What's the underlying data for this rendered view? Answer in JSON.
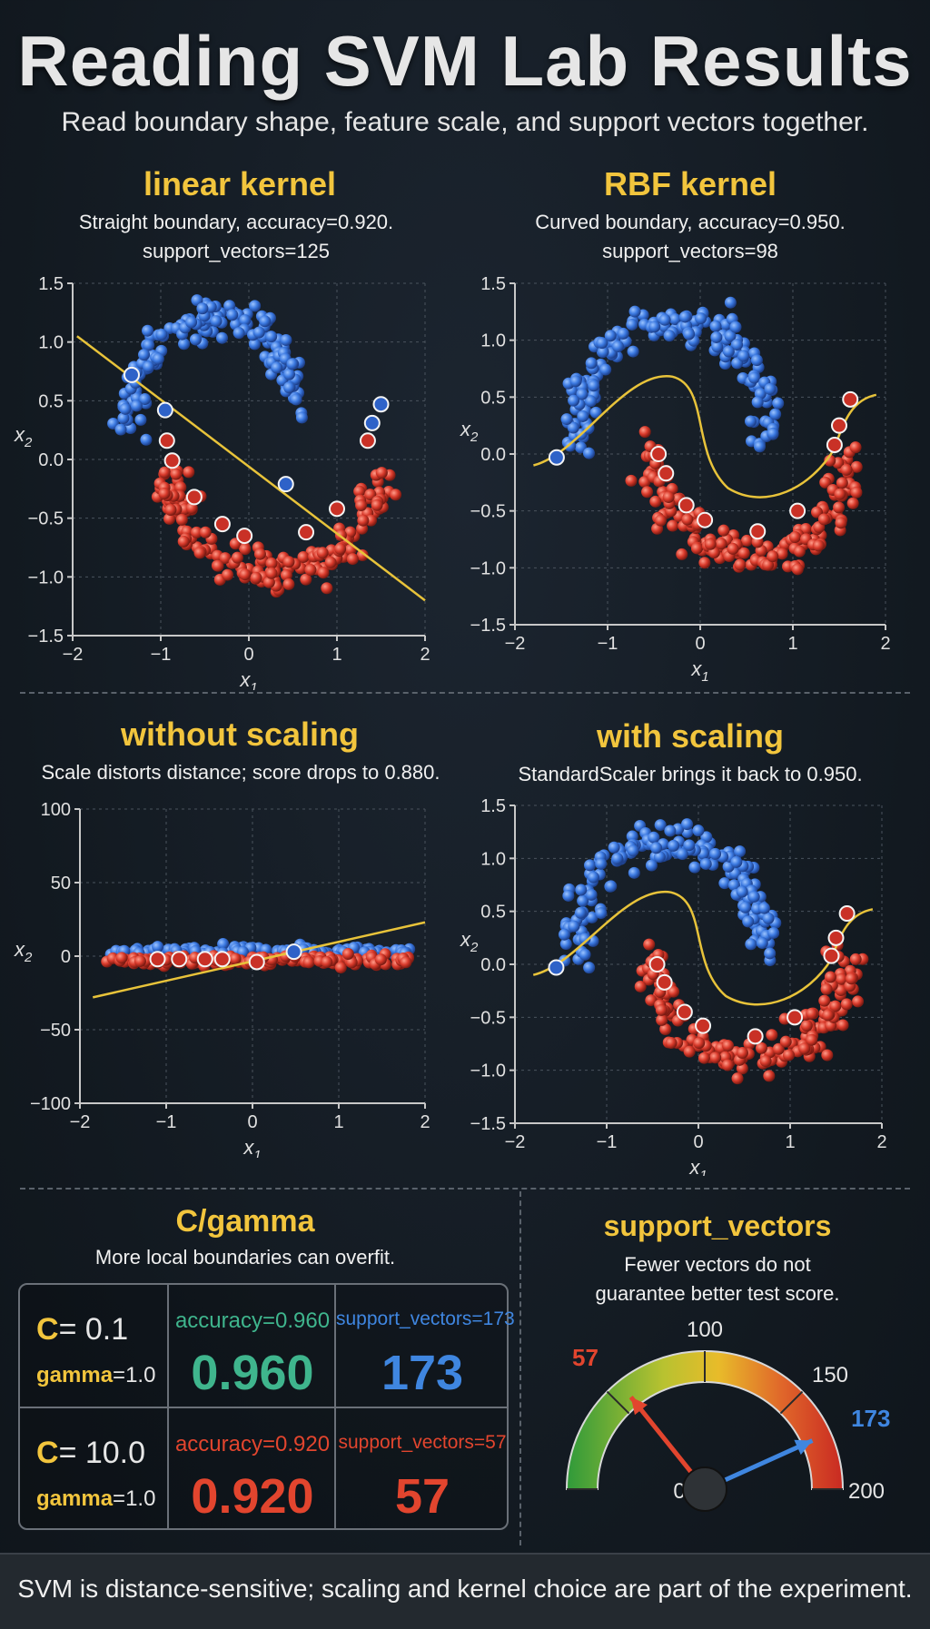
{
  "header": {
    "title": "Reading SVM Lab Results",
    "subtitle": "Read boundary shape, feature scale, and support vectors together."
  },
  "panels": {
    "linear": {
      "title": "linear kernel",
      "caption1": "Straight boundary, accuracy=0.920.",
      "caption2": "support_vectors=125"
    },
    "rbf": {
      "title": "RBF kernel",
      "caption1": "Curved boundary, accuracy=0.950.",
      "caption2": "support_vectors=98"
    },
    "noscale": {
      "title": "without scaling",
      "caption1": "Scale distorts distance; score drops to 0.880."
    },
    "scaled": {
      "title": "with scaling",
      "caption1": "StandardScaler brings it back to 0.950."
    }
  },
  "cgamma": {
    "title": "C/gamma",
    "caption": "More local boundaries can overfit.",
    "rows": [
      {
        "c_label": "C",
        "c_value": "= 0.1",
        "gamma_label": "gamma",
        "gamma_value": "=1.0",
        "acc_label": "accuracy=0.960",
        "acc_big": "0.960",
        "sv_label": "support_vectors=173",
        "sv_big": "173",
        "acc_color": "#3fb58d",
        "sv_color": "#3f86e0"
      },
      {
        "c_label": "C",
        "c_value": "= 10.0",
        "gamma_label": "gamma",
        "gamma_value": "=1.0",
        "acc_label": "accuracy=0.920",
        "acc_big": "0.920",
        "sv_label": "support_vectors=57",
        "sv_big": "57",
        "acc_color": "#e2452e",
        "sv_color": "#e2452e"
      }
    ]
  },
  "gauge": {
    "title": "support_vectors",
    "caption1": "Fewer vectors do not",
    "caption2": "guarantee better test score.",
    "min": 0,
    "max": 200,
    "tick_labels": [
      "0",
      "100",
      "150",
      "200"
    ],
    "needles": [
      {
        "value": 57,
        "label": "57",
        "color": "#e2452e"
      },
      {
        "value": 173,
        "label": "173",
        "color": "#3f86e0"
      }
    ]
  },
  "footer": {
    "text": "SVM is distance-sensitive; scaling and kernel choice are part of the experiment."
  },
  "chart_data": [
    {
      "type": "scatter",
      "title": "linear kernel",
      "xlabel": "x1",
      "ylabel": "x2",
      "xlim": [
        -2,
        2
      ],
      "ylim": [
        -1.5,
        1.5
      ],
      "xticks": [
        -2,
        -1,
        0,
        1,
        2
      ],
      "yticks": [
        -1.5,
        -1.0,
        -0.5,
        0.0,
        0.5,
        1.0,
        1.5
      ],
      "grid": true,
      "series": [
        {
          "color": "#3a78e0",
          "shape": "upper-moon"
        },
        {
          "color": "#d93a2b",
          "shape": "lower-moon"
        }
      ],
      "boundary": {
        "kind": "line",
        "points": [
          [
            -1.95,
            1.05
          ],
          [
            2.0,
            -1.2
          ]
        ],
        "color": "#e8c33a"
      },
      "support_vectors_shown": [
        [
          -1.33,
          0.72
        ],
        [
          -0.95,
          0.42
        ],
        [
          0.42,
          -0.21
        ],
        [
          -0.93,
          0.16
        ],
        [
          -0.87,
          -0.01
        ],
        [
          -0.62,
          -0.32
        ],
        [
          -0.3,
          -0.55
        ],
        [
          -0.05,
          -0.65
        ],
        [
          0.65,
          -0.62
        ],
        [
          1.0,
          -0.42
        ],
        [
          1.35,
          0.16
        ],
        [
          1.4,
          0.31
        ],
        [
          1.5,
          0.47
        ]
      ],
      "accuracy": 0.92,
      "support_vectors": 125
    },
    {
      "type": "scatter",
      "title": "RBF kernel",
      "xlabel": "x1",
      "ylabel": "x2",
      "xlim": [
        -2,
        2
      ],
      "ylim": [
        -1.5,
        1.5
      ],
      "xticks": [
        -2,
        -1,
        0,
        1,
        2
      ],
      "yticks": [
        -1.5,
        -1.0,
        -0.5,
        0.0,
        0.5,
        1.0,
        1.5
      ],
      "grid": true,
      "series": [
        {
          "color": "#3a78e0",
          "shape": "upper-moon"
        },
        {
          "color": "#d93a2b",
          "shape": "lower-moon"
        }
      ],
      "boundary": {
        "kind": "curve",
        "color": "#e8c33a"
      },
      "support_vectors_shown": [
        [
          -1.55,
          -0.03
        ],
        [
          -0.45,
          0.0
        ],
        [
          -0.37,
          -0.17
        ],
        [
          -0.15,
          -0.45
        ],
        [
          0.05,
          -0.58
        ],
        [
          0.62,
          -0.68
        ],
        [
          1.05,
          -0.5
        ],
        [
          1.45,
          0.08
        ],
        [
          1.5,
          0.25
        ],
        [
          1.62,
          0.48
        ]
      ],
      "accuracy": 0.95,
      "support_vectors": 98
    },
    {
      "type": "scatter",
      "title": "without scaling",
      "xlabel": "x1",
      "ylabel": "x2",
      "xlim": [
        -2,
        2
      ],
      "ylim": [
        -100,
        100
      ],
      "xticks": [
        -2,
        -1,
        0,
        1,
        2
      ],
      "yticks": [
        -100,
        -50,
        0,
        50,
        100
      ],
      "grid": true,
      "series": [
        {
          "color": "#3a78e0",
          "shape": "flat-band-upper"
        },
        {
          "color": "#d93a2b",
          "shape": "flat-band-lower"
        }
      ],
      "boundary": {
        "kind": "line",
        "points": [
          [
            -1.85,
            -28
          ],
          [
            2.0,
            23
          ]
        ],
        "color": "#e8c33a"
      },
      "support_vectors_shown": [
        [
          -1.1,
          -2
        ],
        [
          -0.85,
          -2
        ],
        [
          -0.55,
          -2
        ],
        [
          -0.35,
          -2
        ],
        [
          0.05,
          -4
        ],
        [
          0.48,
          3
        ]
      ],
      "accuracy": 0.88
    },
    {
      "type": "scatter",
      "title": "with scaling",
      "xlabel": "x1",
      "ylabel": "x2",
      "xlim": [
        -2,
        2
      ],
      "ylim": [
        -1.5,
        1.5
      ],
      "xticks": [
        -2,
        -1,
        0,
        1,
        2
      ],
      "yticks": [
        -1.5,
        -1.0,
        -0.5,
        0.0,
        0.5,
        1.0,
        1.5
      ],
      "grid": true,
      "series": [
        {
          "color": "#3a78e0",
          "shape": "upper-moon"
        },
        {
          "color": "#d93a2b",
          "shape": "lower-moon"
        }
      ],
      "boundary": {
        "kind": "curve",
        "color": "#e8c33a"
      },
      "support_vectors_shown": [
        [
          -1.55,
          -0.03
        ],
        [
          -0.45,
          0.0
        ],
        [
          -0.37,
          -0.17
        ],
        [
          -0.15,
          -0.45
        ],
        [
          0.05,
          -0.58
        ],
        [
          0.62,
          -0.68
        ],
        [
          1.05,
          -0.5
        ],
        [
          1.45,
          0.08
        ],
        [
          1.5,
          0.25
        ],
        [
          1.62,
          0.48
        ]
      ],
      "accuracy": 0.95
    }
  ]
}
